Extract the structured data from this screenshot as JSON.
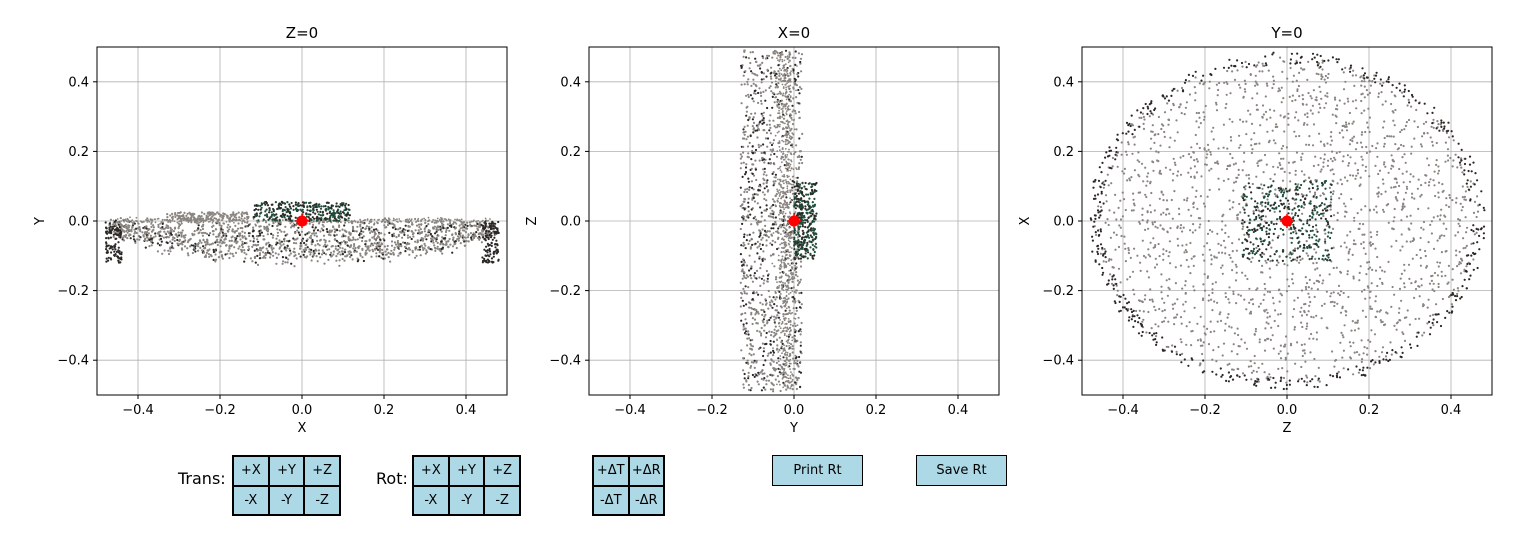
{
  "chart_data": [
    {
      "type": "scatter",
      "title": "Z=0",
      "xlabel": "X",
      "ylabel": "Y",
      "xlim": [
        -0.5,
        0.5
      ],
      "ylim": [
        -0.5,
        0.5
      ],
      "xticks": [
        "−0.4",
        "−0.2",
        "0.0",
        "0.2",
        "0.4"
      ],
      "yticks": [
        "−0.4",
        "−0.2",
        "0.0",
        "0.2",
        "0.4"
      ],
      "grid": true,
      "origin_marker": {
        "x": 0,
        "y": 0,
        "color": "#ff0000"
      },
      "point_colors": [
        "#8a8580",
        "#2b2725",
        "#1f4d3a"
      ],
      "shape": "flat-ellipse"
    },
    {
      "type": "scatter",
      "title": "X=0",
      "xlabel": "Y",
      "ylabel": "Z",
      "xlim": [
        -0.5,
        0.5
      ],
      "ylim": [
        -0.5,
        0.5
      ],
      "xticks": [
        "−0.4",
        "−0.2",
        "0.0",
        "0.2",
        "0.4"
      ],
      "yticks": [
        "−0.4",
        "−0.2",
        "0.0",
        "0.2",
        "0.4"
      ],
      "grid": true,
      "origin_marker": {
        "x": 0,
        "y": 0,
        "color": "#ff0000"
      },
      "point_colors": [
        "#8a8580",
        "#2b2725",
        "#1f4d3a"
      ],
      "shape": "vertical-band"
    },
    {
      "type": "scatter",
      "title": "Y=0",
      "xlabel": "Z",
      "ylabel": "X",
      "xlim": [
        -0.5,
        0.5
      ],
      "ylim": [
        -0.5,
        0.5
      ],
      "xticks": [
        "−0.4",
        "−0.2",
        "0.0",
        "0.2",
        "0.4"
      ],
      "yticks": [
        "−0.4",
        "−0.2",
        "0.0",
        "0.2",
        "0.4"
      ],
      "grid": true,
      "origin_marker": {
        "x": 0,
        "y": 0,
        "color": "#ff0000"
      },
      "point_colors": [
        "#8a8580",
        "#2b2725",
        "#1f4d3a"
      ],
      "shape": "disk"
    }
  ],
  "controls": {
    "trans_label": "Trans:",
    "trans_buttons": [
      "+X",
      "+Y",
      "+Z",
      "-X",
      "-Y",
      "-Z"
    ],
    "rot_label": "Rot:",
    "rot_buttons": [
      "+X",
      "+Y",
      "+Z",
      "-X",
      "-Y",
      "-Z"
    ],
    "delta_buttons": [
      "+ΔT",
      "+ΔR",
      "-ΔT",
      "-ΔR"
    ],
    "print_label": "Print Rt",
    "save_label": "Save Rt",
    "button_color": "#add8e6"
  }
}
